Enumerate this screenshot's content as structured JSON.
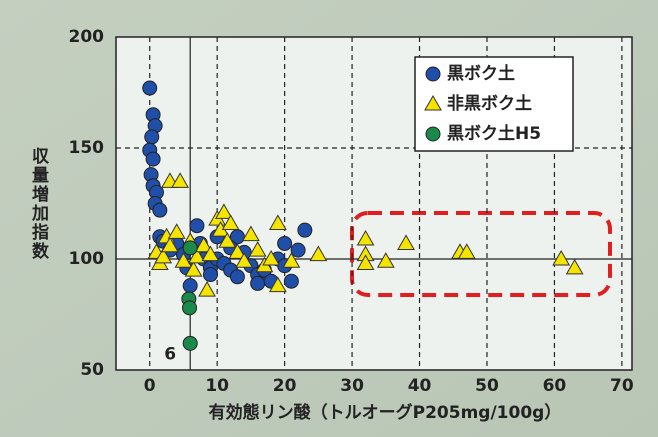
{
  "chart_data": {
    "type": "scatter",
    "x_label": "有効態リン酸（トルオーグP205mg/100g）",
    "y_label": "収量増加指数",
    "xlim": [
      -5,
      71.5
    ],
    "ylim": [
      50,
      200
    ],
    "xticks": [
      0,
      10,
      20,
      30,
      40,
      50,
      60,
      70
    ],
    "yticks": [
      50,
      100,
      150,
      200
    ],
    "grid": true,
    "vline": 6,
    "hline": 100,
    "legend": "upper right",
    "series": [
      {
        "name": "黒ボク土",
        "marker": "circle",
        "color": "#1f4fa8",
        "x": [
          0,
          0.5,
          0.8,
          0.3,
          0,
          0.5,
          0.2,
          0.5,
          1,
          0.8,
          1.5,
          1.5,
          2,
          3,
          4,
          5,
          5.5,
          6,
          7,
          7.5,
          8,
          9,
          10,
          11,
          12,
          13,
          13,
          14,
          15,
          16,
          16,
          17,
          19,
          20,
          20,
          21,
          22,
          23,
          12,
          10,
          9,
          18
        ],
        "values": [
          177,
          165,
          160,
          155,
          149,
          145,
          138,
          133,
          130,
          125,
          122,
          110,
          108,
          104,
          107,
          102,
          96,
          88,
          115,
          107,
          100,
          96,
          100,
          98,
          95,
          92,
          110,
          103,
          97,
          93,
          89,
          95,
          100,
          107,
          97,
          90,
          104,
          113,
          105,
          110,
          93,
          90
        ]
      },
      {
        "name": "非黒ボク土",
        "marker": "triangle",
        "color": "#f5e400",
        "x": [
          1,
          1.5,
          2,
          3,
          4.5,
          2.5,
          3,
          4,
          5,
          6,
          6.5,
          7,
          8,
          8.5,
          9,
          10,
          10.5,
          11,
          11.5,
          12,
          13,
          14,
          15,
          16,
          17,
          18,
          19,
          19,
          21,
          25,
          32,
          32,
          32,
          35,
          38,
          46,
          47,
          61,
          63
        ],
        "values": [
          103,
          98,
          101,
          135,
          135,
          110,
          106,
          112,
          99,
          108,
          95,
          101,
          106,
          86,
          102,
          118,
          113,
          121,
          108,
          116,
          103,
          99,
          111,
          104,
          97,
          100,
          116,
          88,
          99,
          102,
          109,
          102,
          98,
          99,
          107,
          103,
          103,
          100,
          96
        ]
      },
      {
        "name": "黒ボク土H5",
        "marker": "circle",
        "color": "#1a8a4a",
        "x": [
          6,
          5.8,
          5.9,
          6
        ],
        "values": [
          105,
          82,
          78,
          62
        ]
      }
    ]
  }
}
